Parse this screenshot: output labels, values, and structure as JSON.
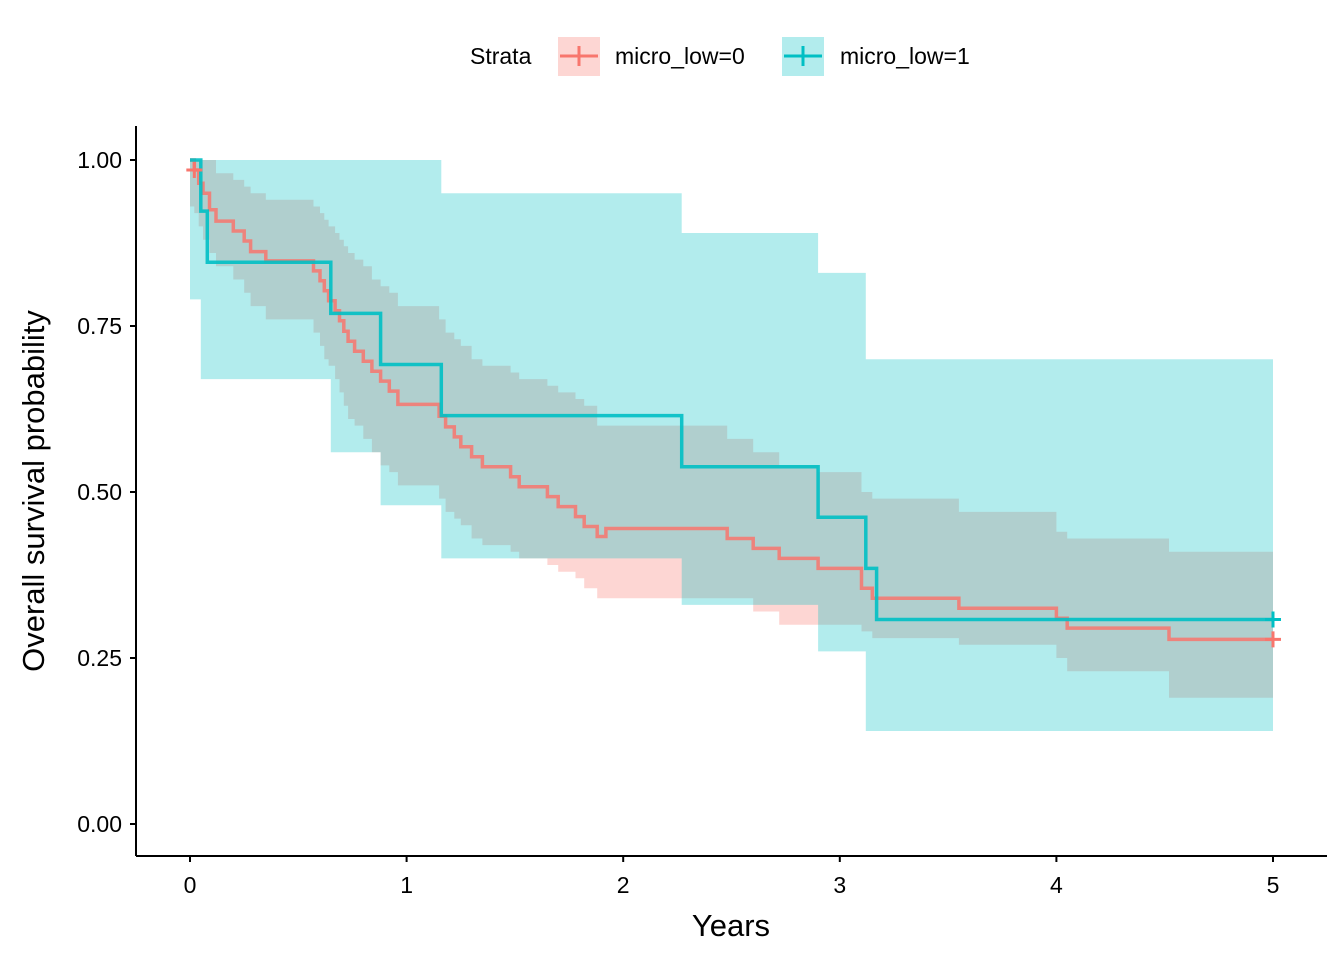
{
  "chart_data": {
    "type": "line",
    "subtype": "kaplan-meier",
    "title": "",
    "xlabel": "Years",
    "ylabel": "Overall survival probability",
    "xlim": [
      -0.25,
      5.25
    ],
    "ylim": [
      -0.05,
      1.05
    ],
    "x_ticks": [
      0,
      1,
      2,
      3,
      4,
      5
    ],
    "x_tick_labels": [
      "0",
      "1",
      "2",
      "3",
      "4",
      "5"
    ],
    "y_ticks": [
      0,
      0.25,
      0.5,
      0.75,
      1.0
    ],
    "y_tick_labels": [
      "0.00",
      "0.25",
      "0.50",
      "0.75",
      "1.00"
    ],
    "grid": false,
    "legend": {
      "position": "top",
      "title": "Strata",
      "entries": [
        "micro_low=0",
        "micro_low=1"
      ]
    },
    "series": [
      {
        "name": "micro_low=0",
        "color": "#F8766D",
        "x": [
          0,
          0.02,
          0.04,
          0.06,
          0.09,
          0.12,
          0.2,
          0.25,
          0.28,
          0.35,
          0.57,
          0.6,
          0.62,
          0.64,
          0.67,
          0.69,
          0.71,
          0.73,
          0.76,
          0.8,
          0.84,
          0.88,
          0.92,
          0.96,
          1.15,
          1.18,
          1.22,
          1.25,
          1.3,
          1.35,
          1.48,
          1.52,
          1.65,
          1.7,
          1.78,
          1.82,
          1.88,
          1.92,
          2.48,
          2.6,
          2.72,
          2.9,
          3.1,
          3.15,
          3.55,
          4.0,
          4.05,
          4.52,
          5.0
        ],
        "surv": [
          1.0,
          0.985,
          0.965,
          0.95,
          0.925,
          0.908,
          0.893,
          0.878,
          0.862,
          0.848,
          0.833,
          0.818,
          0.803,
          0.788,
          0.773,
          0.758,
          0.742,
          0.727,
          0.712,
          0.697,
          0.682,
          0.667,
          0.652,
          0.632,
          0.614,
          0.598,
          0.583,
          0.568,
          0.553,
          0.538,
          0.523,
          0.508,
          0.493,
          0.478,
          0.463,
          0.448,
          0.433,
          0.445,
          0.43,
          0.415,
          0.4,
          0.385,
          0.355,
          0.34,
          0.325,
          0.31,
          0.295,
          0.278,
          0.278
        ],
        "lower": [
          0.93,
          0.92,
          0.9,
          0.88,
          0.86,
          0.84,
          0.82,
          0.8,
          0.78,
          0.76,
          0.74,
          0.72,
          0.7,
          0.69,
          0.67,
          0.65,
          0.63,
          0.61,
          0.6,
          0.58,
          0.56,
          0.54,
          0.53,
          0.51,
          0.49,
          0.47,
          0.46,
          0.45,
          0.43,
          0.42,
          0.41,
          0.4,
          0.39,
          0.38,
          0.37,
          0.355,
          0.34,
          0.34,
          0.34,
          0.32,
          0.3,
          0.3,
          0.29,
          0.28,
          0.27,
          0.25,
          0.23,
          0.19,
          0.19
        ],
        "upper": [
          1.0,
          1.0,
          1.0,
          1.0,
          1.0,
          0.98,
          0.97,
          0.96,
          0.95,
          0.94,
          0.93,
          0.92,
          0.91,
          0.9,
          0.89,
          0.88,
          0.87,
          0.86,
          0.85,
          0.84,
          0.82,
          0.81,
          0.8,
          0.78,
          0.76,
          0.74,
          0.73,
          0.72,
          0.7,
          0.69,
          0.68,
          0.67,
          0.66,
          0.65,
          0.64,
          0.63,
          0.6,
          0.6,
          0.58,
          0.56,
          0.54,
          0.53,
          0.5,
          0.49,
          0.47,
          0.44,
          0.43,
          0.41,
          0.41
        ],
        "censor_x": [
          0.02,
          5.0
        ],
        "censor_y": [
          0.985,
          0.278
        ]
      },
      {
        "name": "micro_low=1",
        "color": "#00BFC4",
        "x": [
          0,
          0.05,
          0.08,
          0.65,
          0.88,
          1.16,
          2.27,
          2.9,
          3.12,
          3.17,
          5.0
        ],
        "surv": [
          1.0,
          0.923,
          0.846,
          0.769,
          0.692,
          0.615,
          0.538,
          0.462,
          0.385,
          0.308,
          0.308
        ],
        "lower": [
          0.79,
          0.67,
          0.67,
          0.56,
          0.48,
          0.4,
          0.33,
          0.26,
          0.14,
          0.14,
          0.14
        ],
        "upper": [
          1.0,
          1.0,
          1.0,
          1.0,
          1.0,
          0.95,
          0.89,
          0.83,
          0.7,
          0.7,
          0.7
        ],
        "censor_x": [
          5.0
        ],
        "censor_y": [
          0.308
        ]
      }
    ]
  }
}
